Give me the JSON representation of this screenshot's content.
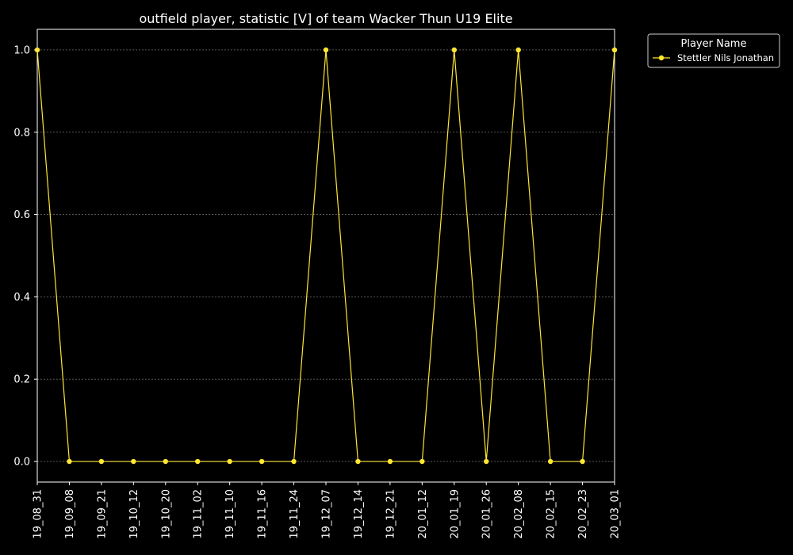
{
  "chart_data": {
    "type": "line",
    "title": "outfield player, statistic [V] of team Wacker Thun U19 Elite",
    "xlabel": "",
    "ylabel": "",
    "categories": [
      "19_08_31",
      "19_09_08",
      "19_09_21",
      "19_10_12",
      "19_10_20",
      "19_11_02",
      "19_11_10",
      "19_11_16",
      "19_11_24",
      "19_12_07",
      "19_12_14",
      "19_12_21",
      "20_01_12",
      "20_01_19",
      "20_01_26",
      "20_02_08",
      "20_02_15",
      "20_02_23",
      "20_03_01"
    ],
    "series": [
      {
        "name": "Stettler Nils Jonathan",
        "color": "#ffe633",
        "values": [
          1,
          0,
          0,
          0,
          0,
          0,
          0,
          0,
          0,
          1,
          0,
          0,
          0,
          1,
          0,
          1,
          0,
          0,
          1
        ]
      }
    ],
    "yticks": [
      "0.0",
      "0.2",
      "0.4",
      "0.6",
      "0.8",
      "1.0"
    ],
    "ylim": [
      -0.05,
      1.05
    ],
    "grid": true,
    "legend": {
      "title": "Player Name",
      "placement": "outside-top-right"
    },
    "colors": {
      "background": "#000000",
      "axes": "#ffffff",
      "grid": "#888888"
    }
  }
}
